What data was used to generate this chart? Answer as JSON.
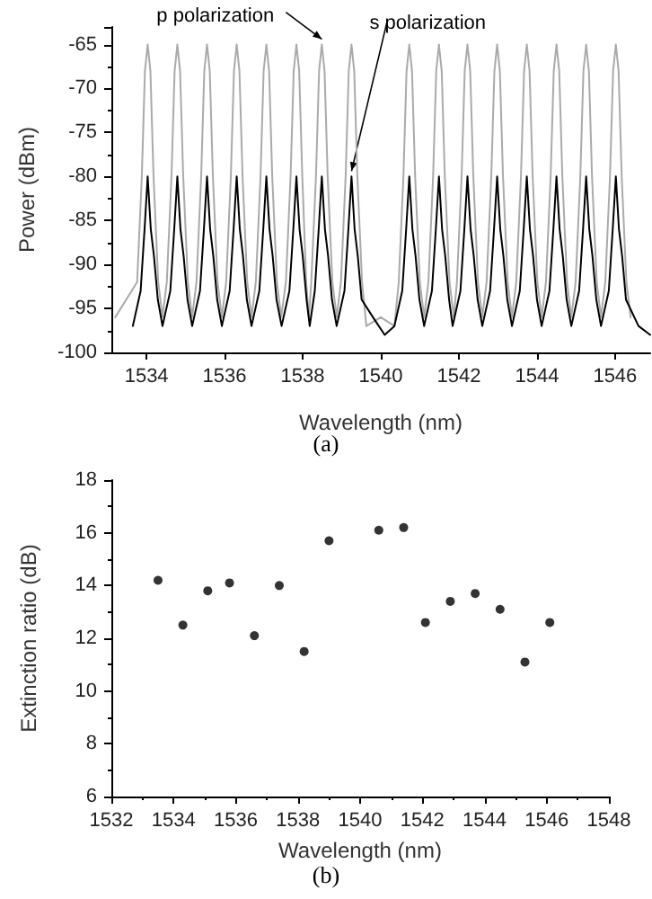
{
  "chart_data": [
    {
      "type": "line",
      "xlabel": "Wavelength (nm)",
      "ylabel": "Power (dBm)",
      "xlim": [
        1533.1,
        1546.9
      ],
      "ylim": [
        -100,
        -63
      ],
      "xticks": [
        1534,
        1536,
        1538,
        1540,
        1542,
        1544,
        1546
      ],
      "yticks": [
        -100,
        -95,
        -90,
        -85,
        -80,
        -75,
        -70,
        -65
      ],
      "marker": "none",
      "annotations": [
        {
          "text": "p polarization",
          "x": 1538.49,
          "y": -65
        },
        {
          "text": "s polarization",
          "x": 1539.25,
          "y": -80
        },
        "(a)"
      ],
      "series": [
        {
          "color": "#aaaaaa",
          "x": [
            1533.2,
            1533.76,
            1533.88,
            1533.96,
            1534.03,
            1534.1,
            1534.18,
            1534.3,
            1534.41,
            1534.52,
            1534.64,
            1534.72,
            1534.79,
            1534.86,
            1534.94,
            1535.06,
            1535.17,
            1535.28,
            1535.4,
            1535.48,
            1535.55,
            1535.62,
            1535.7,
            1535.82,
            1535.93,
            1536.04,
            1536.16,
            1536.24,
            1536.31,
            1536.38,
            1536.46,
            1536.58,
            1536.69,
            1536.8,
            1536.92,
            1537.0,
            1537.07,
            1537.14,
            1537.22,
            1537.34,
            1537.45,
            1537.57,
            1537.69,
            1537.77,
            1537.84,
            1537.91,
            1537.99,
            1538.09,
            1538.16,
            1538.22,
            1538.34,
            1538.42,
            1538.49,
            1538.56,
            1538.64,
            1538.76,
            1538.87,
            1538.98,
            1539.1,
            1539.18,
            1539.25,
            1539.32,
            1539.4,
            1539.52,
            1539.63,
            1540.0,
            1540.35,
            1540.46,
            1540.58,
            1540.66,
            1540.73,
            1540.8,
            1540.88,
            1541.0,
            1541.11,
            1541.22,
            1541.34,
            1541.42,
            1541.49,
            1541.56,
            1541.64,
            1541.76,
            1541.87,
            1541.95,
            1542.07,
            1542.15,
            1542.22,
            1542.29,
            1542.37,
            1542.49,
            1542.6,
            1542.71,
            1542.83,
            1542.91,
            1542.98,
            1543.05,
            1543.13,
            1543.25,
            1543.36,
            1543.47,
            1543.59,
            1543.67,
            1543.74,
            1543.81,
            1543.89,
            1544.01,
            1544.12,
            1544.23,
            1544.35,
            1544.43,
            1544.5,
            1544.57,
            1544.65,
            1544.77,
            1544.88,
            1544.99,
            1545.11,
            1545.19,
            1545.26,
            1545.33,
            1545.41,
            1545.53,
            1545.64,
            1545.75,
            1545.87,
            1545.95,
            1546.02,
            1546.09,
            1546.17,
            1546.29,
            1546.4
          ],
          "values": [
            -96,
            -92,
            -80,
            -68,
            -65,
            -68,
            -80,
            -92,
            -96,
            -92,
            -80,
            -68,
            -65,
            -68,
            -80,
            -92,
            -96,
            -92,
            -80,
            -68,
            -65,
            -68,
            -80,
            -92,
            -96,
            -92,
            -80,
            -68,
            -65,
            -68,
            -80,
            -92,
            -96,
            -92,
            -80,
            -68,
            -65,
            -68,
            -80,
            -92,
            -96,
            -92,
            -80,
            -68,
            -65,
            -68,
            -80,
            -92,
            -96,
            -92,
            -80,
            -68,
            -65,
            -68,
            -80,
            -92,
            -96,
            -92,
            -80,
            -68,
            -65,
            -68,
            -80,
            -92,
            -97,
            -96,
            -97,
            -92,
            -80,
            -68,
            -65,
            -68,
            -80,
            -92,
            -96,
            -92,
            -80,
            -68,
            -65,
            -68,
            -80,
            -92,
            -96,
            -92,
            -80,
            -68,
            -65,
            -68,
            -80,
            -92,
            -96,
            -92,
            -80,
            -68,
            -65,
            -68,
            -80,
            -92,
            -96,
            -92,
            -80,
            -68,
            -65,
            -68,
            -80,
            -92,
            -96,
            -92,
            -80,
            -68,
            -65,
            -68,
            -80,
            -92,
            -96,
            -92,
            -80,
            -68,
            -65,
            -68,
            -80,
            -92,
            -96,
            -92,
            -80,
            -68,
            -65,
            -68,
            -80,
            -92,
            -96
          ]
        },
        {
          "color": "#000000",
          "x": [
            1533.65,
            1533.85,
            1533.95,
            1534.03,
            1534.11,
            1534.19,
            1534.29,
            1534.41,
            1534.61,
            1534.71,
            1534.79,
            1534.87,
            1534.95,
            1535.05,
            1535.17,
            1535.37,
            1535.47,
            1535.55,
            1535.63,
            1535.71,
            1535.81,
            1535.93,
            1536.13,
            1536.23,
            1536.31,
            1536.39,
            1536.47,
            1536.57,
            1536.69,
            1536.89,
            1536.99,
            1537.07,
            1537.15,
            1537.23,
            1537.33,
            1537.46,
            1537.66,
            1537.76,
            1537.84,
            1537.92,
            1538.0,
            1538.1,
            1538.18,
            1538.31,
            1538.41,
            1538.49,
            1538.57,
            1538.65,
            1538.75,
            1538.87,
            1539.07,
            1539.17,
            1539.25,
            1539.33,
            1539.41,
            1539.51,
            1539.8,
            1540.1,
            1540.35,
            1540.55,
            1540.65,
            1540.73,
            1540.81,
            1540.89,
            1540.99,
            1541.11,
            1541.31,
            1541.41,
            1541.49,
            1541.57,
            1541.65,
            1541.75,
            1541.84,
            1542.04,
            1542.14,
            1542.22,
            1542.3,
            1542.38,
            1542.48,
            1542.6,
            1542.8,
            1542.9,
            1542.98,
            1543.06,
            1543.14,
            1543.24,
            1543.36,
            1543.56,
            1543.66,
            1543.74,
            1543.82,
            1543.9,
            1544.0,
            1544.12,
            1544.32,
            1544.42,
            1544.5,
            1544.58,
            1544.66,
            1544.76,
            1544.88,
            1545.08,
            1545.18,
            1545.26,
            1545.34,
            1545.42,
            1545.52,
            1545.64,
            1545.84,
            1545.94,
            1546.02,
            1546.1,
            1546.18,
            1546.28,
            1546.6,
            1546.9
          ],
          "values": [
            -97,
            -93,
            -86,
            -80,
            -86,
            -89,
            -94,
            -97,
            -93,
            -86,
            -80,
            -86,
            -89,
            -94,
            -97,
            -93,
            -86,
            -80,
            -86,
            -89,
            -94,
            -97,
            -93,
            -86,
            -80,
            -86,
            -89,
            -94,
            -97,
            -93,
            -86,
            -80,
            -86,
            -89,
            -94,
            -97,
            -93,
            -86,
            -80,
            -86,
            -89,
            -94,
            -97,
            -93,
            -86,
            -80,
            -86,
            -89,
            -94,
            -97,
            -93,
            -86,
            -80,
            -86,
            -89,
            -94,
            -96,
            -98,
            -97,
            -93,
            -86,
            -80,
            -86,
            -89,
            -94,
            -97,
            -93,
            -86,
            -80,
            -86,
            -89,
            -94,
            -97,
            -93,
            -86,
            -80,
            -86,
            -89,
            -94,
            -97,
            -93,
            -86,
            -80,
            -86,
            -89,
            -94,
            -97,
            -93,
            -86,
            -80,
            -86,
            -89,
            -94,
            -97,
            -93,
            -86,
            -80,
            -86,
            -89,
            -94,
            -97,
            -93,
            -86,
            -80,
            -86,
            -89,
            -94,
            -97,
            -93,
            -86,
            -80,
            -86,
            -89,
            -94,
            -97,
            -98
          ]
        }
      ]
    },
    {
      "type": "scatter",
      "xlabel": "Wavelength (nm)",
      "ylabel": "Extinction ratio (dB)",
      "xlim": [
        1532,
        1548
      ],
      "ylim": [
        6,
        18
      ],
      "xticks": [
        1532,
        1534,
        1536,
        1538,
        1540,
        1542,
        1544,
        1546,
        1548
      ],
      "yticks": [
        6,
        8,
        10,
        12,
        14,
        16,
        18
      ],
      "marker": "circle",
      "annotations": [
        "(b)"
      ],
      "x": [
        1533.5,
        1534.3,
        1535.1,
        1535.8,
        1536.6,
        1537.4,
        1538.2,
        1539.0,
        1540.6,
        1541.4,
        1542.1,
        1542.9,
        1543.7,
        1544.5,
        1545.3,
        1546.1
      ],
      "series": [
        {
          "color": "#000000",
          "values": [
            14.2,
            12.5,
            13.8,
            14.1,
            12.1,
            14.0,
            11.5,
            15.7,
            16.1,
            16.2,
            12.6,
            13.4,
            13.7,
            13.1,
            11.1,
            12.6
          ]
        }
      ]
    }
  ]
}
